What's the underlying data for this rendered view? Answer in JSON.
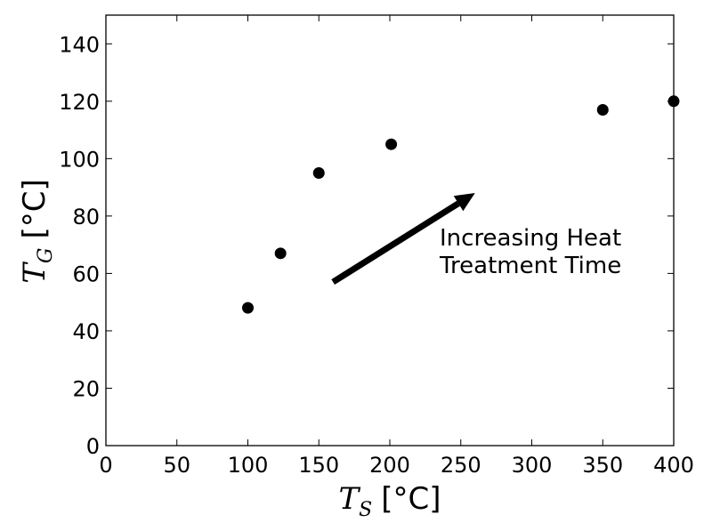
{
  "chart_data": {
    "type": "scatter",
    "title": "",
    "xlabel": {
      "symbol": "T",
      "subscript": "S",
      "unit": "[$^\\circ$C]"
    },
    "ylabel": {
      "symbol": "T",
      "subscript": "G",
      "unit": "[$^\\circ$C]"
    },
    "xlim": [
      0,
      400
    ],
    "ylim": [
      0,
      150
    ],
    "xticks": [
      0,
      50,
      100,
      150,
      200,
      250,
      300,
      350,
      400
    ],
    "yticks": [
      0,
      20,
      40,
      60,
      80,
      100,
      120,
      140
    ],
    "grid": false,
    "marker_color": "#000000",
    "points": [
      {
        "x": 100,
        "y": 48
      },
      {
        "x": 123,
        "y": 67
      },
      {
        "x": 150,
        "y": 95
      },
      {
        "x": 201,
        "y": 105
      },
      {
        "x": 350,
        "y": 117
      },
      {
        "x": 400,
        "y": 120
      }
    ],
    "annotation": {
      "lines": [
        "Increasing Heat",
        "Treatment Time"
      ],
      "arrow_from": {
        "x": 160,
        "y": 57
      },
      "arrow_to": {
        "x": 260,
        "y": 88
      }
    },
    "unit_display": "[°C]"
  }
}
